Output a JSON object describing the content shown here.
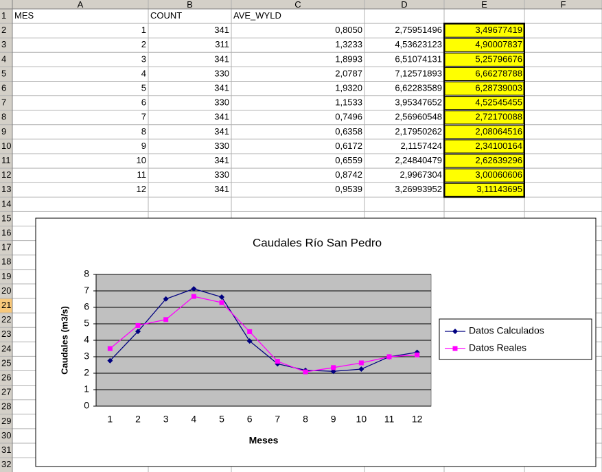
{
  "sheet": {
    "columns": [
      "A",
      "B",
      "C",
      "D",
      "E",
      "F"
    ],
    "row_numbers": [
      1,
      2,
      3,
      4,
      5,
      6,
      7,
      8,
      9,
      10,
      11,
      12,
      13,
      14,
      15,
      16,
      17,
      18,
      19,
      20,
      21,
      22,
      23,
      24,
      25,
      26,
      27,
      28,
      29,
      30,
      31,
      32
    ],
    "header": [
      "MES",
      "COUNT",
      "AVE_WYLD"
    ],
    "rows": [
      [
        1,
        341,
        "0,8050",
        "2,75951496",
        "3,49677419"
      ],
      [
        2,
        311,
        "1,3233",
        "4,53623123",
        "4,90007837"
      ],
      [
        3,
        341,
        "1,8993",
        "6,51074131",
        "5,25796676"
      ],
      [
        4,
        330,
        "2,0787",
        "7,12571893",
        "6,66278788"
      ],
      [
        5,
        341,
        "1,9320",
        "6,62283589",
        "6,28739003"
      ],
      [
        6,
        330,
        "1,1533",
        "3,95347652",
        "4,52545455"
      ],
      [
        7,
        341,
        "0,7496",
        "2,56960548",
        "2,72170088"
      ],
      [
        8,
        341,
        "0,6358",
        "2,17950262",
        "2,08064516"
      ],
      [
        9,
        330,
        "0,6172",
        "2,1157424",
        "2,34100164"
      ],
      [
        10,
        341,
        "0,6559",
        "2,24840479",
        "2,62639296"
      ],
      [
        11,
        330,
        "0,8742",
        "2,9967304",
        "3,00060606"
      ],
      [
        12,
        341,
        "0,9539",
        "3,26993952",
        "3,11143695"
      ]
    ]
  },
  "chart_data": {
    "type": "line",
    "title": "Caudales Río San Pedro",
    "x_label": "Meses",
    "y_label": "Caudales (m3/s)",
    "categories": [
      1,
      2,
      3,
      4,
      5,
      6,
      7,
      8,
      9,
      10,
      11,
      12
    ],
    "series": [
      {
        "name": "Datos Calculados",
        "color": "#000080",
        "marker": "diamond",
        "values": [
          2.75951496,
          4.53623123,
          6.51074131,
          7.12571893,
          6.62283589,
          3.95347652,
          2.56960548,
          2.17950262,
          2.1157424,
          2.24840479,
          2.9967304,
          3.26993952
        ]
      },
      {
        "name": "Datos Reales",
        "color": "#ff00ff",
        "marker": "square",
        "values": [
          3.49677419,
          4.90007837,
          5.25796676,
          6.66278788,
          6.28739003,
          4.52545455,
          2.72170088,
          2.08064516,
          2.34100164,
          2.62639296,
          3.00060606,
          3.11143695
        ]
      }
    ],
    "ylim": [
      0,
      8
    ],
    "yticks": [
      0,
      1,
      2,
      3,
      4,
      5,
      6,
      7,
      8
    ],
    "grid": true,
    "legend": "right"
  }
}
